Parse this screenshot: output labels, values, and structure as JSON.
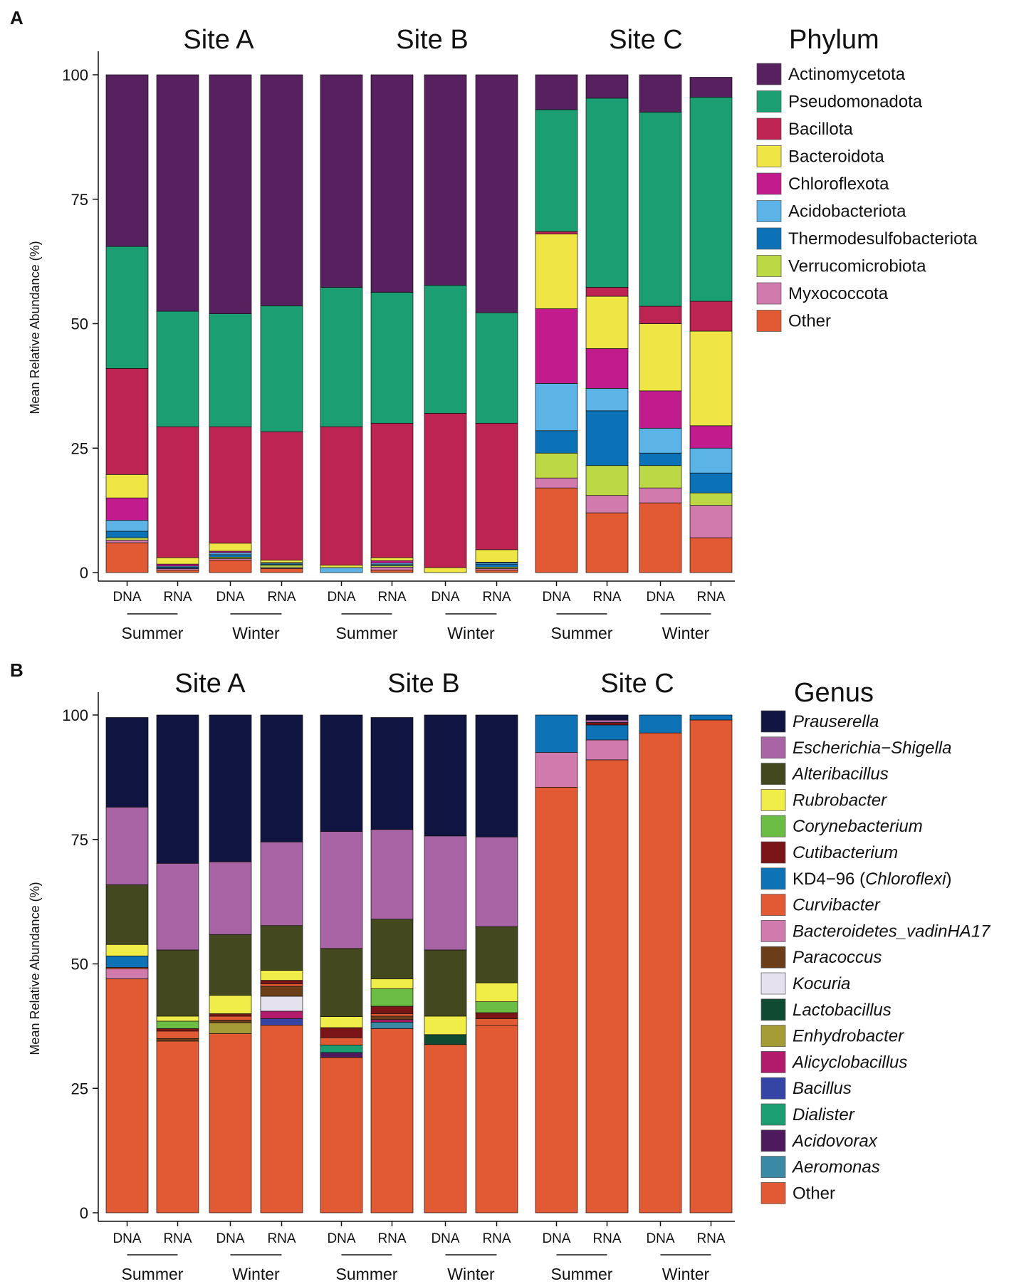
{
  "palette": {
    "Actinomycetota": "#57215f",
    "Pseudomonadota": "#1b9e72",
    "Bacillota": "#bd2353",
    "Bacteroidota": "#efe545",
    "Chloroflexota": "#c21b8e",
    "Acidobacteriota": "#5cb4e6",
    "Thermodesulfobacteriota": "#0c72b7",
    "Verrucomicrobiota": "#bdd845",
    "Myxococcota": "#d17aad",
    "Other": "#e25a33",
    "Prauserella": "#101440",
    "Escherichia-Shigella": "#a864a5",
    "Alteribacillus": "#44481f",
    "Rubrobacter": "#f0ec48",
    "Corynebacterium": "#6cbd46",
    "Cutibacterium": "#7a1416",
    "KD4-96": "#0e72b7",
    "Curvibacter": "#e25a33",
    "Bacteroidetes_vadinHA17": "#d17aad",
    "Paracoccus": "#6b3d18",
    "Kocuria": "#e6e1ef",
    "Lactobacillus": "#0e4b30",
    "Enhydrobacter": "#a69c35",
    "Alicyclobacillus": "#b21a6c",
    "Bacillus": "#3545a5",
    "Dialister": "#1b9e72",
    "Acidovorax": "#4d1a5d",
    "Aeromonas": "#3a8aa5",
    "OtherGenus": "#e25a33"
  },
  "chart_data": [
    {
      "panel": "A",
      "type": "bar",
      "stacked": true,
      "ylabel": "Mean Relative Abundance (%)",
      "ylim": [
        0,
        100
      ],
      "yticks": [
        "0",
        "25",
        "50",
        "75",
        "100"
      ],
      "sites": [
        "Site A",
        "Site B",
        "Site C"
      ],
      "seasons": [
        "Summer",
        "Winter",
        "Summer",
        "Winter",
        "Summer",
        "Winter"
      ],
      "categories": [
        "DNA",
        "RNA",
        "DNA",
        "RNA",
        "DNA",
        "RNA",
        "DNA",
        "RNA",
        "DNA",
        "RNA",
        "DNA",
        "RNA"
      ],
      "legend_title": "Phylum",
      "series": [
        {
          "name": "Other",
          "label": "Other",
          "color_key": "Other",
          "values": [
            6,
            0.5,
            2.5,
            0.8,
            0,
            0.5,
            0,
            0.5,
            17,
            12,
            14,
            7
          ]
        },
        {
          "name": "Myxococcota",
          "label": "Myxococcota",
          "color_key": "Myxococcota",
          "values": [
            0.5,
            0.3,
            0.3,
            0.2,
            0,
            0.6,
            0,
            0.3,
            2,
            3.5,
            3,
            6.5
          ]
        },
        {
          "name": "Verrucomicrobiota",
          "label": "Verrucomicrobiota",
          "color_key": "Verrucomicrobiota",
          "values": [
            0.5,
            0,
            0.3,
            0.5,
            0,
            0.3,
            0,
            0.3,
            5,
            6,
            4.5,
            2.5
          ]
        },
        {
          "name": "Thermodesulfobacteriota",
          "label": "Thermodesulfobacteriota",
          "color_key": "Thermodesulfobacteriota",
          "values": [
            1.3,
            0.3,
            0.5,
            0.2,
            0,
            0.2,
            0,
            0.6,
            4.5,
            11,
            2.5,
            4
          ]
        },
        {
          "name": "Acidobacteriota",
          "label": "Acidobacteriota",
          "color_key": "Acidobacteriota",
          "values": [
            2.2,
            0.2,
            0.4,
            0.2,
            1,
            0.3,
            0,
            0.3,
            9.5,
            4.5,
            5,
            5
          ]
        },
        {
          "name": "Chloroflexota",
          "label": "Chloroflexota",
          "color_key": "Chloroflexota",
          "values": [
            4.5,
            0.4,
            0.3,
            0.1,
            0,
            0.5,
            0,
            0.1,
            15,
            8,
            7.5,
            4.5
          ]
        },
        {
          "name": "Bacteroidota",
          "label": "Bacteroidota",
          "color_key": "Bacteroidota",
          "values": [
            4.7,
            1.3,
            1.6,
            0.5,
            0.5,
            0.6,
            1,
            2.5,
            15,
            10.5,
            13.5,
            19
          ]
        },
        {
          "name": "Bacillota",
          "label": "Bacillota",
          "color_key": "Bacillota",
          "values": [
            21.3,
            26.3,
            23.4,
            25.8,
            27.8,
            27,
            31,
            25.4,
            0.5,
            1.8,
            3.5,
            6
          ]
        },
        {
          "name": "Pseudomonadota",
          "label": "Pseudomonadota",
          "color_key": "Pseudomonadota",
          "values": [
            24.5,
            23.2,
            22.7,
            25.3,
            28,
            26.3,
            25.7,
            22.2,
            24.5,
            38,
            39,
            41
          ]
        },
        {
          "name": "Actinomycetota",
          "label": "Actinomycetota",
          "color_key": "Actinomycetota",
          "values": [
            34.5,
            47.5,
            48,
            46.4,
            42.7,
            43.7,
            42.3,
            47.8,
            7,
            4.7,
            7.5,
            4
          ]
        }
      ],
      "legend_items": [
        {
          "label": "Actinomycetota",
          "color_key": "Actinomycetota",
          "italic": false
        },
        {
          "label": "Pseudomonadota",
          "color_key": "Pseudomonadota",
          "italic": false
        },
        {
          "label": "Bacillota",
          "color_key": "Bacillota",
          "italic": false
        },
        {
          "label": "Bacteroidota",
          "color_key": "Bacteroidota",
          "italic": false
        },
        {
          "label": "Chloroflexota",
          "color_key": "Chloroflexota",
          "italic": false
        },
        {
          "label": "Acidobacteriota",
          "color_key": "Acidobacteriota",
          "italic": false
        },
        {
          "label": "Thermodesulfobacteriota",
          "color_key": "Thermodesulfobacteriota",
          "italic": false
        },
        {
          "label": "Verrucomicrobiota",
          "color_key": "Verrucomicrobiota",
          "italic": false
        },
        {
          "label": "Myxococcota",
          "color_key": "Myxococcota",
          "italic": false
        },
        {
          "label": "Other",
          "color_key": "Other",
          "italic": false
        }
      ]
    },
    {
      "panel": "B",
      "type": "bar",
      "stacked": true,
      "ylabel": "Mean Relative Abundance (%)",
      "ylim": [
        0,
        100
      ],
      "yticks": [
        "0",
        "25",
        "50",
        "75",
        "100"
      ],
      "sites": [
        "Site A",
        "Site B",
        "Site C"
      ],
      "seasons": [
        "Summer",
        "Winter",
        "Summer",
        "Winter",
        "Summer",
        "Winter"
      ],
      "categories": [
        "DNA",
        "RNA",
        "DNA",
        "RNA",
        "DNA",
        "RNA",
        "DNA",
        "RNA",
        "DNA",
        "RNA",
        "DNA",
        "RNA"
      ],
      "legend_title": "Genus",
      "series": [
        {
          "name": "Other",
          "label": "Other",
          "color_key": "OtherGenus",
          "values": [
            47,
            34.5,
            36,
            37.7,
            31.2,
            37,
            33.8,
            37.6,
            85.5,
            91,
            96.4,
            99
          ]
        },
        {
          "name": "Aeromonas",
          "label": "Aeromonas",
          "color_key": "Aeromonas",
          "values": [
            0,
            0,
            0,
            0,
            0,
            1.3,
            0,
            0,
            0,
            0,
            0,
            0
          ]
        },
        {
          "name": "Acidovorax",
          "label": "Acidovorax",
          "color_key": "Acidovorax",
          "values": [
            0,
            0,
            0,
            0,
            1,
            0,
            0,
            0,
            0,
            0,
            0,
            0
          ]
        },
        {
          "name": "Dialister",
          "label": "Dialister",
          "color_key": "Dialister",
          "values": [
            0,
            0,
            0,
            0,
            1.5,
            0,
            0,
            0,
            0,
            0,
            0,
            0
          ]
        },
        {
          "name": "Bacillus",
          "label": "Bacillus",
          "color_key": "Bacillus",
          "values": [
            0,
            0,
            0,
            1.3,
            0,
            0,
            0,
            0,
            0,
            0,
            0,
            0
          ]
        },
        {
          "name": "Alicyclobacillus",
          "label": "Alicyclobacillus",
          "color_key": "Alicyclobacillus",
          "values": [
            0,
            0,
            0,
            1.5,
            0,
            0.5,
            0,
            0,
            0,
            0,
            0,
            0
          ]
        },
        {
          "name": "Enhydrobacter",
          "label": "Enhydrobacter",
          "color_key": "Enhydrobacter",
          "values": [
            0,
            0,
            2.2,
            0,
            0,
            0,
            0,
            0,
            0,
            0,
            0,
            0
          ]
        },
        {
          "name": "Lactobacillus",
          "label": "Lactobacillus",
          "color_key": "Lactobacillus",
          "values": [
            0,
            0,
            0,
            0,
            0,
            0,
            2,
            0,
            0,
            0,
            0,
            0
          ]
        },
        {
          "name": "Kocuria",
          "label": "Kocuria",
          "color_key": "Kocuria",
          "values": [
            0,
            0,
            0,
            3,
            0,
            0,
            0,
            0,
            0,
            0,
            0,
            0
          ]
        },
        {
          "name": "Paracoccus",
          "label": "Paracoccus",
          "color_key": "Paracoccus",
          "values": [
            0,
            0.5,
            0.5,
            2,
            0,
            0.7,
            0,
            0,
            0,
            0,
            0,
            0
          ]
        },
        {
          "name": "Bacteroidetes_vadinHA17",
          "label": "Bacteroidetes_vadinHA17",
          "color_key": "Bacteroidetes_vadinHA17",
          "values": [
            2,
            0,
            0,
            0,
            0,
            0,
            0,
            0,
            7,
            4,
            0,
            0
          ]
        },
        {
          "name": "Curvibacter",
          "label": "Curvibacter",
          "color_key": "Curvibacter",
          "values": [
            0.3,
            1.5,
            0.8,
            0.5,
            1.5,
            0.5,
            0,
            1.4,
            0,
            0,
            0,
            0
          ]
        },
        {
          "name": "KD4-96",
          "label": "KD4−96 (Chloroflexi)",
          "color_key": "KD4-96",
          "values": [
            2.3,
            0,
            0,
            0,
            0,
            0,
            0,
            0,
            7.5,
            3,
            3.6,
            1
          ]
        },
        {
          "name": "Cutibacterium",
          "label": "Cutibacterium",
          "color_key": "Cutibacterium",
          "values": [
            0,
            0.5,
            0.5,
            0.7,
            2,
            1.5,
            0,
            1.2,
            0,
            0.5,
            0,
            0
          ]
        },
        {
          "name": "Corynebacterium",
          "label": "Corynebacterium",
          "color_key": "Corynebacterium",
          "values": [
            0,
            1.5,
            0,
            0,
            0,
            3.5,
            0,
            2.2,
            0,
            0,
            0,
            0
          ]
        },
        {
          "name": "Rubrobacter",
          "label": "Rubrobacter",
          "color_key": "Rubrobacter",
          "values": [
            2.3,
            1,
            3.7,
            2,
            2.2,
            2,
            3.7,
            3.8,
            0,
            0,
            0,
            0
          ]
        },
        {
          "name": "Alteribacillus",
          "label": "Alteribacillus",
          "color_key": "Alteribacillus",
          "values": [
            12,
            13.3,
            12.2,
            9,
            13.7,
            12,
            13.3,
            11.3,
            0,
            0,
            0,
            0
          ]
        },
        {
          "name": "Escherichia-Shigella",
          "label": "Escherichia−Shigella",
          "color_key": "Escherichia-Shigella",
          "values": [
            15.6,
            17.4,
            14.6,
            16.8,
            23.5,
            18,
            22.9,
            18,
            0,
            0.5,
            0,
            0
          ]
        },
        {
          "name": "Prauserella",
          "label": "Prauserella",
          "color_key": "Prauserella",
          "values": [
            18,
            29.8,
            29.5,
            25.5,
            23.4,
            22.5,
            24.3,
            24.5,
            0,
            1,
            0,
            0
          ]
        }
      ],
      "legend_items": [
        {
          "label": "Prauserella",
          "color_key": "Prauserella",
          "italic": true
        },
        {
          "label": "Escherichia−Shigella",
          "color_key": "Escherichia-Shigella",
          "italic": true
        },
        {
          "label": "Alteribacillus",
          "color_key": "Alteribacillus",
          "italic": true
        },
        {
          "label": "Rubrobacter",
          "color_key": "Rubrobacter",
          "italic": true
        },
        {
          "label": "Corynebacterium",
          "color_key": "Corynebacterium",
          "italic": true
        },
        {
          "label": "Cutibacterium",
          "color_key": "Cutibacterium",
          "italic": true
        },
        {
          "label": "KD4−96 (Chloroflexi)",
          "color_key": "KD4-96",
          "italic": false,
          "parts": [
            {
              "text": "KD4−96 (",
              "italic": false
            },
            {
              "text": "Chloroflexi",
              "italic": true
            },
            {
              "text": ")",
              "italic": false
            }
          ]
        },
        {
          "label": "Curvibacter",
          "color_key": "Curvibacter",
          "italic": true
        },
        {
          "label": "Bacteroidetes_vadinHA17",
          "color_key": "Bacteroidetes_vadinHA17",
          "italic": true
        },
        {
          "label": "Paracoccus",
          "color_key": "Paracoccus",
          "italic": true
        },
        {
          "label": "Kocuria",
          "color_key": "Kocuria",
          "italic": true
        },
        {
          "label": "Lactobacillus",
          "color_key": "Lactobacillus",
          "italic": true
        },
        {
          "label": "Enhydrobacter",
          "color_key": "Enhydrobacter",
          "italic": true
        },
        {
          "label": "Alicyclobacillus",
          "color_key": "Alicyclobacillus",
          "italic": true
        },
        {
          "label": "Bacillus",
          "color_key": "Bacillus",
          "italic": true
        },
        {
          "label": "Dialister",
          "color_key": "Dialister",
          "italic": true
        },
        {
          "label": "Acidovorax",
          "color_key": "Acidovorax",
          "italic": true
        },
        {
          "label": "Aeromonas",
          "color_key": "Aeromonas",
          "italic": true
        },
        {
          "label": "Other",
          "color_key": "OtherGenus",
          "italic": false
        }
      ]
    }
  ]
}
